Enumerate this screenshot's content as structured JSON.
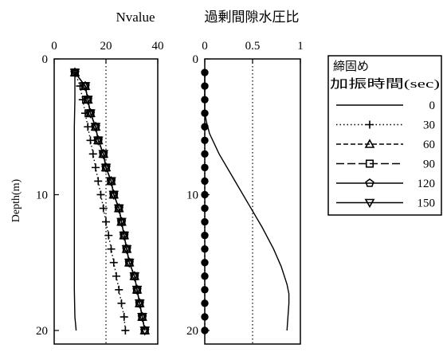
{
  "chart_data": [
    {
      "type": "line",
      "title": "Nvalue",
      "xlabel": "",
      "ylabel": "Depth(m)",
      "xlim": [
        0,
        40
      ],
      "ylim": [
        0,
        21
      ],
      "y_inverted": true,
      "xticks": [
        "0",
        "20",
        "40"
      ],
      "yticks": [
        "0",
        "10",
        "20"
      ],
      "reference_line_x": 20,
      "series": [
        {
          "name": "0",
          "marker": "none",
          "x": [
            8,
            8,
            7.8,
            7.8,
            7.8,
            7.8,
            7.8,
            7.8,
            7.8,
            8,
            8.5
          ],
          "y": [
            1,
            3,
            5,
            7,
            9,
            11,
            13,
            15,
            17,
            19,
            20
          ]
        },
        {
          "name": "30",
          "marker": "plus",
          "x": [
            8,
            10,
            11,
            12,
            13,
            14,
            15,
            16,
            17,
            18,
            19,
            20,
            21,
            22,
            23,
            24,
            25,
            26,
            27,
            27.5
          ],
          "y": [
            1,
            2,
            3,
            4,
            5,
            6,
            7,
            8,
            9,
            10,
            11,
            12,
            13,
            14,
            15,
            16,
            17,
            18,
            19,
            20
          ]
        },
        {
          "name": "60",
          "marker": "triangle-up",
          "x": [
            8,
            12,
            13,
            14,
            16,
            17,
            19,
            20,
            22,
            23,
            25,
            26,
            27,
            28,
            29,
            31,
            32,
            33,
            34,
            35
          ],
          "y": [
            1,
            2,
            3,
            4,
            5,
            6,
            7,
            8,
            9,
            10,
            11,
            12,
            13,
            14,
            15,
            16,
            17,
            18,
            19,
            20
          ]
        },
        {
          "name": "90",
          "marker": "square",
          "x": [
            8,
            12,
            13,
            14,
            16,
            17,
            19,
            20,
            22,
            23,
            25,
            26,
            27,
            28,
            29,
            31,
            32,
            33,
            34,
            35
          ],
          "y": [
            1,
            2,
            3,
            4,
            5,
            6,
            7,
            8,
            9,
            10,
            11,
            12,
            13,
            14,
            15,
            16,
            17,
            18,
            19,
            20
          ]
        },
        {
          "name": "120",
          "marker": "pentagon",
          "x": [
            8,
            12,
            13,
            14,
            16,
            17,
            19,
            20,
            22,
            23,
            25,
            26,
            27,
            28,
            29,
            31,
            32,
            33,
            34,
            35
          ],
          "y": [
            1,
            2,
            3,
            4,
            5,
            6,
            7,
            8,
            9,
            10,
            11,
            12,
            13,
            14,
            15,
            16,
            17,
            18,
            19,
            20
          ]
        },
        {
          "name": "150",
          "marker": "triangle-down",
          "x": [
            8,
            12,
            13,
            14,
            16,
            17,
            19,
            20,
            22,
            23,
            25,
            26,
            27,
            28,
            29,
            31,
            32,
            33,
            34,
            35
          ],
          "y": [
            1,
            2,
            3,
            4,
            5,
            6,
            7,
            8,
            9,
            10,
            11,
            12,
            13,
            14,
            15,
            16,
            17,
            18,
            19,
            20
          ]
        }
      ]
    },
    {
      "type": "line",
      "title": "過剰間隙水圧比",
      "xlabel": "",
      "ylabel": "",
      "xlim": [
        0,
        1
      ],
      "ylim": [
        0,
        21
      ],
      "y_inverted": true,
      "xticks": [
        "0",
        "0.5",
        "1"
      ],
      "yticks": [
        "0",
        "10",
        "20"
      ],
      "reference_line_x": 0.5,
      "series": [
        {
          "name": "0",
          "marker": "none",
          "x": [
            0,
            0,
            0.02,
            0.05,
            0.15,
            0.3,
            0.45,
            0.6,
            0.72,
            0.8,
            0.86,
            0.88,
            0.88,
            0.87,
            0.86
          ],
          "y": [
            1,
            4,
            4.7,
            5.5,
            7,
            8.8,
            10.6,
            12.4,
            14,
            15.3,
            16.6,
            17.3,
            18,
            19,
            20
          ]
        },
        {
          "name": "30",
          "marker": "dot",
          "x": [
            0,
            0,
            0,
            0,
            0,
            0,
            0,
            0,
            0,
            0,
            0,
            0,
            0,
            0,
            0,
            0,
            0,
            0,
            0,
            0
          ],
          "y": [
            1,
            2,
            3,
            4,
            5,
            6,
            7,
            8,
            9,
            10,
            11,
            12,
            13,
            14,
            15,
            16,
            17,
            18,
            19,
            20
          ]
        }
      ]
    }
  ],
  "legend": {
    "title_line1": "締固め",
    "title_line2": "加振時間(sec)",
    "entries": [
      {
        "label": "0",
        "dash": "solid",
        "marker": "none"
      },
      {
        "label": "30",
        "dash": "dotted",
        "marker": "plus"
      },
      {
        "label": "60",
        "dash": "dashed",
        "marker": "triangle-up"
      },
      {
        "label": "90",
        "dash": "longdash",
        "marker": "square"
      },
      {
        "label": "120",
        "dash": "solid",
        "marker": "pentagon"
      },
      {
        "label": "150",
        "dash": "solid",
        "marker": "triangle-down"
      }
    ]
  }
}
